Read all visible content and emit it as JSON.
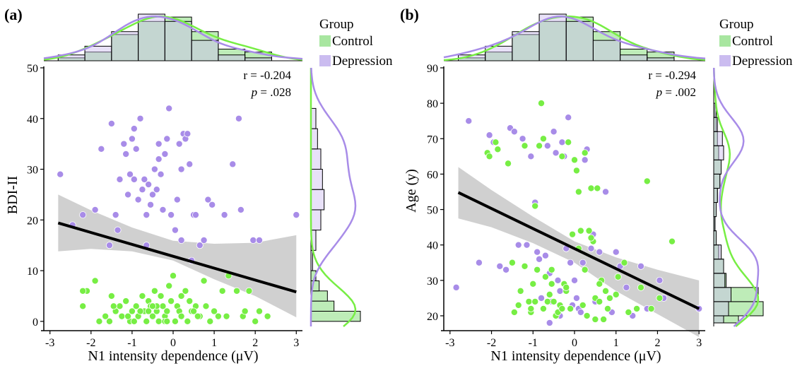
{
  "colors": {
    "control": "#77ee44",
    "control_fill": "#a8e6a0",
    "depression": "#a88ce8",
    "depression_fill": "#cbbcf0",
    "regression": "#000000",
    "ci_band": "#c8c8c8"
  },
  "chart_data": [
    {
      "type": "scatter",
      "panel_label": "(a)",
      "xlabel": "N1 intensity dependence (μV)",
      "ylabel": "BDI-II",
      "xlim": [
        -3.15,
        3.15
      ],
      "ylim": [
        -1,
        50
      ],
      "xticks": [
        -3,
        -2,
        -1,
        0,
        1,
        2,
        3
      ],
      "yticks": [
        0,
        10,
        20,
        30,
        40,
        50
      ],
      "legend": {
        "title": "Group",
        "position": "top-right outside",
        "entries": [
          "Control",
          "Depression"
        ]
      },
      "annotation": {
        "r_text": "r = -0.204",
        "p_label": "p",
        "p_value": " = .028"
      },
      "regression": {
        "x": [
          -2.8,
          3.0
        ],
        "y": [
          19.4,
          5.8
        ]
      },
      "ci_band": {
        "x": [
          -2.8,
          -2.0,
          -1.0,
          0.0,
          1.0,
          2.0,
          3.0
        ],
        "upper": [
          25.0,
          21.9,
          18.5,
          15.9,
          15.3,
          15.5,
          17.0
        ],
        "lower": [
          13.8,
          14.3,
          13.8,
          12.0,
          8.3,
          5.0,
          0.8
        ]
      },
      "series": [
        {
          "name": "Control",
          "x": [
            -2.2,
            -2.1,
            -1.9,
            -1.65,
            -1.55,
            -1.5,
            -1.4,
            -1.3,
            -1.25,
            -1.15,
            -1.05,
            -1.0,
            -0.9,
            -0.85,
            -0.75,
            -0.7,
            -0.65,
            -0.6,
            -0.55,
            -0.5,
            -0.45,
            -0.4,
            -0.35,
            -0.3,
            -0.25,
            -0.2,
            -0.15,
            -0.1,
            -0.05,
            0.0,
            0.05,
            0.1,
            0.15,
            0.2,
            0.3,
            0.35,
            0.45,
            0.55,
            0.65,
            0.75,
            0.9,
            1.0,
            1.2,
            1.35,
            1.7,
            1.85,
            2.1,
            2.3,
            -1.8,
            -1.1,
            -0.6,
            -0.2,
            0.4,
            0.8,
            1.55,
            1.75,
            -0.95,
            -0.4,
            0.2,
            0.6,
            -0.8,
            0.05,
            1.1,
            -1.45,
            -0.15,
            0.5,
            2.0,
            -0.5,
            1.3,
            -2.2
          ],
          "y": [
            3,
            6,
            8,
            1,
            0,
            5,
            2,
            3,
            1,
            4,
            0,
            2,
            3,
            1,
            5,
            2,
            0,
            4,
            3,
            1,
            6,
            2,
            0,
            5,
            3,
            1,
            2,
            7,
            4,
            9,
            0,
            3,
            2,
            1,
            6,
            0,
            2,
            3,
            1,
            8,
            0,
            2,
            6,
            9,
            1,
            6,
            2,
            1,
            0,
            1,
            2,
            0,
            4,
            3,
            6,
            2,
            0,
            3,
            5,
            1,
            2,
            0,
            1,
            3,
            0,
            2,
            0,
            3,
            1,
            6
          ]
        },
        {
          "name": "Depression",
          "x": [
            -2.75,
            -2.45,
            -2.2,
            -1.9,
            -1.75,
            -1.55,
            -1.5,
            -1.4,
            -1.3,
            -1.2,
            -1.15,
            -1.1,
            -1.05,
            -1.0,
            -0.95,
            -0.9,
            -0.85,
            -0.8,
            -0.75,
            -0.7,
            -0.65,
            -0.6,
            -0.55,
            -0.5,
            -0.45,
            -0.4,
            -0.35,
            -0.3,
            -0.25,
            -0.2,
            -0.15,
            -0.1,
            -0.05,
            0.05,
            0.1,
            0.15,
            0.2,
            0.25,
            0.3,
            0.35,
            0.4,
            0.5,
            0.55,
            0.65,
            0.75,
            0.85,
            0.95,
            1.25,
            1.45,
            1.6,
            1.95,
            2.1,
            3.0,
            -0.35,
            -0.65,
            0.2,
            -1.35,
            0.45,
            -0.95,
            1.65
          ],
          "y": [
            29,
            19,
            21,
            22,
            34,
            15,
            39,
            21,
            28,
            35,
            33,
            25,
            29,
            36,
            38,
            34,
            24,
            40,
            26,
            28,
            15,
            27,
            23,
            25,
            30,
            26,
            32,
            29,
            22,
            33,
            36,
            42,
            21,
            18,
            24,
            35,
            30,
            37,
            36,
            37,
            31,
            21,
            21,
            15,
            16,
            24,
            23,
            21,
            31,
            40,
            16,
            16,
            21,
            35,
            21,
            16,
            18,
            12,
            28,
            22
          ]
        }
      ],
      "top_marginal": {
        "bins": [
          -2.8,
          -2.15,
          -1.5,
          -0.85,
          -0.2,
          0.45,
          1.1,
          1.75,
          2.4
        ],
        "control_counts": [
          2,
          6,
          18,
          27,
          30,
          20,
          8,
          6
        ],
        "depression_counts": [
          4,
          10,
          20,
          32,
          27,
          14,
          4,
          2
        ]
      },
      "right_marginal": {
        "bins": [
          0,
          2,
          4,
          6,
          8,
          10,
          14,
          18,
          22,
          26,
          30,
          34,
          38,
          42
        ],
        "control_counts": [
          30,
          14,
          10,
          5,
          3,
          0,
          0,
          0,
          0,
          0,
          0,
          0,
          0
        ],
        "depression_counts": [
          0,
          0,
          0,
          0,
          0,
          1,
          3,
          6,
          8,
          7,
          6,
          4,
          3
        ]
      }
    },
    {
      "type": "scatter",
      "panel_label": "(b)",
      "xlabel": "N1 intensity dependence (μV)",
      "ylabel": "Age (y)",
      "xlim": [
        -3.15,
        3.15
      ],
      "ylim": [
        17,
        90
      ],
      "xticks": [
        -3,
        -2,
        -1,
        0,
        1,
        2,
        3
      ],
      "yticks": [
        20,
        30,
        40,
        50,
        60,
        70,
        80,
        90
      ],
      "legend": {
        "title": "Group",
        "position": "top-right outside",
        "entries": [
          "Control",
          "Depression"
        ]
      },
      "annotation": {
        "r_text": "r = -0.294",
        "p_label": "p",
        "p_value": " = .002"
      },
      "regression": {
        "x": [
          -2.8,
          3.0
        ],
        "y": [
          54.8,
          22.0
        ]
      },
      "ci_band": {
        "x": [
          -2.8,
          -2.0,
          -1.0,
          0.0,
          1.0,
          2.0,
          3.0
        ],
        "upper": [
          62.0,
          55.5,
          48.0,
          41.0,
          36.5,
          33.0,
          30.0
        ],
        "lower": [
          47.5,
          45.0,
          40.5,
          35.0,
          27.0,
          20.5,
          14.0
        ]
      },
      "series": [
        {
          "name": "Control",
          "x": [
            -2.1,
            -2.05,
            -1.9,
            -1.85,
            -1.6,
            -1.5,
            -1.45,
            -1.35,
            -1.3,
            -1.2,
            -1.1,
            -1.05,
            -1.0,
            -0.95,
            -0.9,
            -0.85,
            -0.8,
            -0.75,
            -0.7,
            -0.65,
            -0.6,
            -0.55,
            -0.5,
            -0.45,
            -0.4,
            -0.35,
            -0.3,
            -0.25,
            -0.2,
            -0.15,
            -0.1,
            -0.05,
            0.0,
            0.05,
            0.1,
            0.15,
            0.2,
            0.25,
            0.3,
            0.35,
            0.4,
            0.45,
            0.5,
            0.55,
            0.6,
            0.65,
            0.7,
            0.8,
            0.85,
            1.05,
            1.2,
            1.3,
            1.5,
            1.6,
            1.75,
            1.85,
            2.05,
            2.35,
            -0.75,
            -1.2,
            0.1,
            0.4,
            -0.3,
            0.75,
            -0.55,
            0.25,
            -0.95,
            0.6,
            1.0,
            -1.05,
            -0.2,
            0.5
          ],
          "y": [
            66,
            65,
            69,
            67,
            63,
            35,
            21,
            23,
            27,
            34,
            24,
            21,
            29,
            51,
            33,
            68,
            80,
            22,
            31,
            24,
            26,
            29,
            24,
            20,
            21,
            23,
            22,
            29,
            27,
            69,
            22,
            43,
            64,
            61,
            39,
            44,
            23,
            33,
            20,
            44,
            56,
            41,
            25,
            56,
            24,
            30,
            19,
            22,
            25,
            31,
            35,
            21,
            22,
            28,
            58,
            22,
            25,
            41,
            70,
            68,
            55,
            42,
            65,
            27,
            33,
            66,
            24,
            29,
            26,
            22,
            28,
            19
          ]
        },
        {
          "name": "Depression",
          "x": [
            -2.85,
            -2.55,
            -2.3,
            -2.05,
            -1.95,
            -1.8,
            -1.55,
            -1.45,
            -1.35,
            -1.25,
            -1.15,
            -1.05,
            -0.95,
            -0.9,
            -0.85,
            -0.8,
            -0.75,
            -0.7,
            -0.65,
            -0.6,
            -0.55,
            -0.5,
            -0.45,
            -0.4,
            -0.35,
            -0.3,
            -0.25,
            -0.2,
            -0.15,
            -0.1,
            -0.05,
            0.0,
            0.05,
            0.1,
            0.15,
            0.2,
            0.3,
            0.4,
            0.5,
            0.6,
            0.75,
            0.9,
            1.0,
            1.1,
            1.25,
            1.4,
            1.6,
            1.75,
            2.05,
            2.15,
            3.0,
            -1.65,
            -0.35,
            0.25,
            -0.6,
            0.45
          ],
          "y": [
            28,
            75,
            35,
            71,
            69,
            34,
            73,
            72,
            40,
            70,
            40,
            65,
            52,
            38,
            36,
            25,
            70,
            37,
            68,
            32,
            24,
            72,
            66,
            30,
            20,
            69,
            65,
            39,
            76,
            35,
            23,
            30,
            25,
            22,
            21,
            35,
            67,
            39,
            24,
            38,
            55,
            21,
            38,
            34,
            28,
            20,
            34,
            22,
            30,
            25,
            22,
            33,
            27,
            64,
            18,
            43
          ]
        }
      ],
      "top_marginal": {
        "bins": [
          -2.8,
          -2.15,
          -1.5,
          -0.85,
          -0.2,
          0.45,
          1.1,
          1.75,
          2.4
        ],
        "control_counts": [
          2,
          6,
          18,
          27,
          30,
          20,
          8,
          6
        ],
        "depression_counts": [
          4,
          10,
          20,
          32,
          27,
          14,
          4,
          2
        ]
      },
      "right_marginal": {
        "bins": [
          18,
          20,
          24,
          28,
          32,
          36,
          40,
          44,
          48,
          52,
          56,
          60,
          64,
          68,
          72,
          76,
          80
        ],
        "control_counts": [
          20,
          40,
          36,
          10,
          8,
          4,
          2,
          1,
          2,
          3,
          5,
          6,
          4,
          3,
          2,
          1
        ],
        "depression_counts": [
          8,
          12,
          14,
          9,
          8,
          6,
          2,
          1,
          2,
          3,
          5,
          6,
          8,
          7,
          3,
          2
        ]
      }
    }
  ]
}
